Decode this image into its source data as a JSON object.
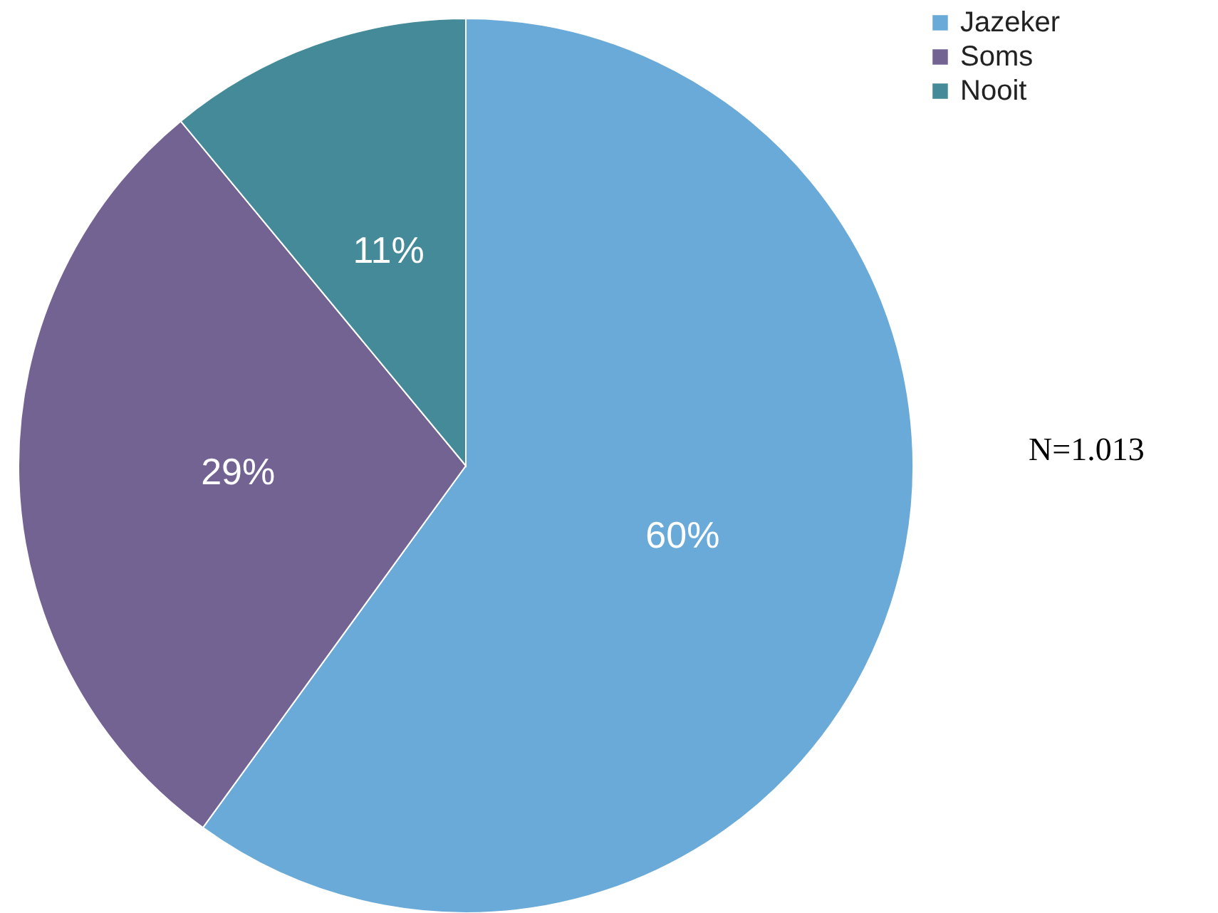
{
  "chart_data": {
    "type": "pie",
    "categories": [
      "Jazeker",
      "Soms",
      "Nooit"
    ],
    "values": [
      60,
      29,
      11
    ],
    "colors": [
      "#6aaad8",
      "#736393",
      "#458a98"
    ],
    "value_labels": [
      "60%",
      "29%",
      "11%"
    ],
    "legend": "top right",
    "annotations": [
      "N=1.013"
    ]
  }
}
